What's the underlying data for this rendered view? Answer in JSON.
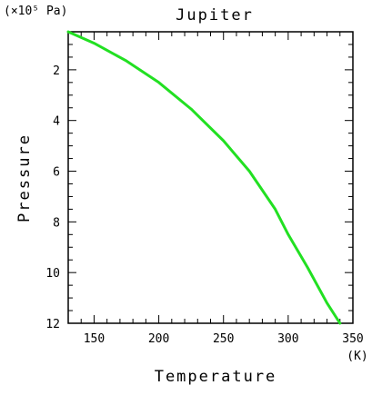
{
  "chart_data": {
    "type": "line",
    "title": "Jupiter",
    "xlabel": "Temperature",
    "ylabel": "Pressure",
    "x_unit": "(K)",
    "y_unit": "(×10⁵ Pa)",
    "xlim": [
      130,
      350
    ],
    "ylim": [
      0.5,
      12
    ],
    "y_inverted": true,
    "x_ticks": [
      150,
      200,
      250,
      300,
      350
    ],
    "y_ticks": [
      2,
      4,
      6,
      8,
      10,
      12
    ],
    "grid": false,
    "line_color": "#22e022",
    "series": [
      {
        "x": [
          130,
          150,
          175,
          200,
          225,
          250,
          270,
          290,
          300,
          315,
          330,
          340
        ],
        "y": [
          0.5,
          0.95,
          1.65,
          2.5,
          3.55,
          4.8,
          6.0,
          7.5,
          8.5,
          9.8,
          11.2,
          12.0
        ]
      }
    ]
  }
}
